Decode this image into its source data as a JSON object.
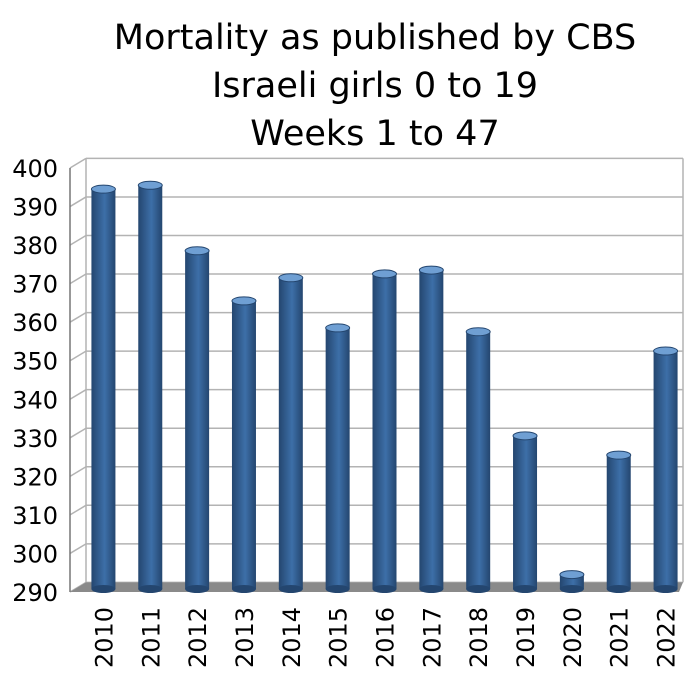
{
  "chart_data": {
    "type": "bar",
    "title": [
      "Mortality as published by CBS",
      "Israeli girls 0 to 19",
      "Weeks 1 to 47"
    ],
    "xlabel": "",
    "ylabel": "",
    "categories": [
      "2010",
      "2011",
      "2012",
      "2013",
      "2014",
      "2015",
      "2016",
      "2017",
      "2018",
      "2019",
      "2020",
      "2021",
      "2022"
    ],
    "values": [
      394,
      395,
      378,
      365,
      371,
      358,
      372,
      373,
      357,
      330,
      294,
      325,
      352
    ],
    "ylim": [
      290,
      400
    ],
    "yticks": [
      290,
      300,
      310,
      320,
      330,
      340,
      350,
      360,
      370,
      380,
      390,
      400
    ],
    "grid": true,
    "legend": "none",
    "bar_color": "#3d6fa8",
    "bar_dark_color": "#24466f",
    "bar_light_color": "#6f9fd3",
    "floor_color": "#8a8a8a",
    "grid_color": "#b3b3b3"
  }
}
